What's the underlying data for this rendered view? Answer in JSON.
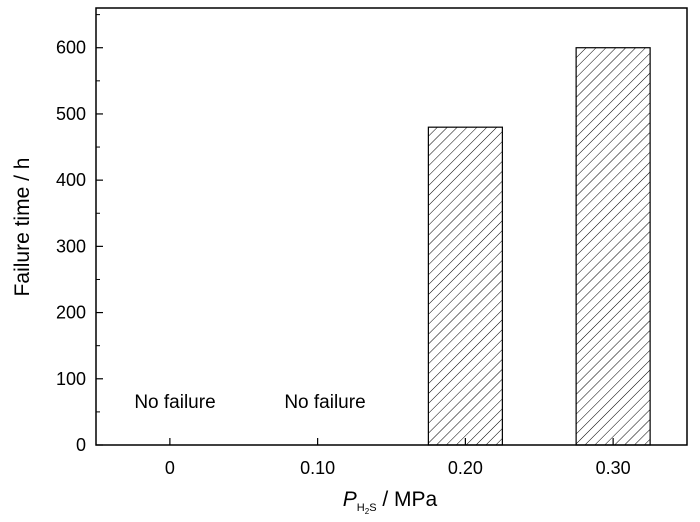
{
  "chart_data": {
    "type": "bar",
    "categories": [
      "0",
      "0.10",
      "0.20",
      "0.30"
    ],
    "values": [
      0,
      0,
      480,
      600
    ],
    "ylabel": "Failure time / h",
    "xlabel": {
      "symbol": "P",
      "subscript": "H",
      "subscript2": "2",
      "subscript3": "S",
      "unit": " / MPa"
    },
    "ylim": [
      0,
      660
    ],
    "yticks": [
      "0",
      "100",
      "200",
      "300",
      "400",
      "500",
      "600"
    ],
    "annotations": [
      "No failure",
      "No failure"
    ],
    "bar_fill": "hatched",
    "grid": false,
    "colors": {
      "bar_stroke": "#000000",
      "hatch": "#000000",
      "background": "#ffffff"
    }
  }
}
